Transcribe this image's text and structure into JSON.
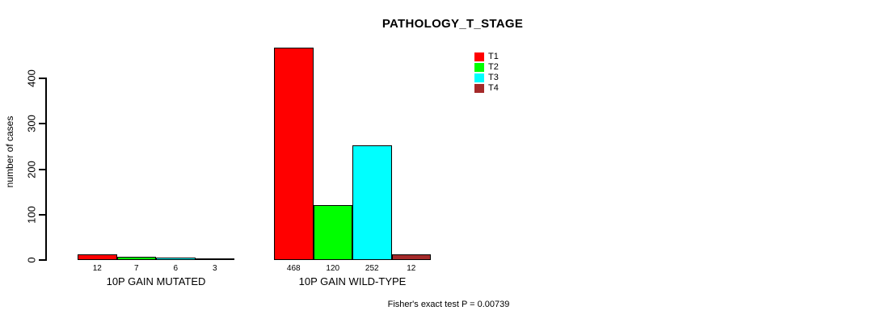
{
  "chart_data": {
    "type": "bar",
    "title": "PATHOLOGY_T_STAGE",
    "ylabel": "number of cases",
    "xlabel": "",
    "ylim": [
      0,
      400
    ],
    "yticks": [
      0,
      100,
      200,
      300,
      400
    ],
    "grid": false,
    "legend_position": "top-right",
    "categories": [
      "10P GAIN MUTATED",
      "10P GAIN WILD-TYPE"
    ],
    "series": [
      {
        "name": "T1",
        "color": "#ff0000",
        "values": [
          12,
          468
        ]
      },
      {
        "name": "T2",
        "color": "#00ff00",
        "values": [
          7,
          120
        ]
      },
      {
        "name": "T3",
        "color": "#00ffff",
        "values": [
          6,
          252
        ]
      },
      {
        "name": "T4",
        "color": "#a52a2a",
        "values": [
          3,
          12
        ]
      }
    ],
    "bar_value_labels": [
      [
        12,
        7,
        6,
        3
      ],
      [
        468,
        120,
        252,
        12
      ]
    ],
    "annotation": "Fisher's exact test P = 0.00739"
  }
}
